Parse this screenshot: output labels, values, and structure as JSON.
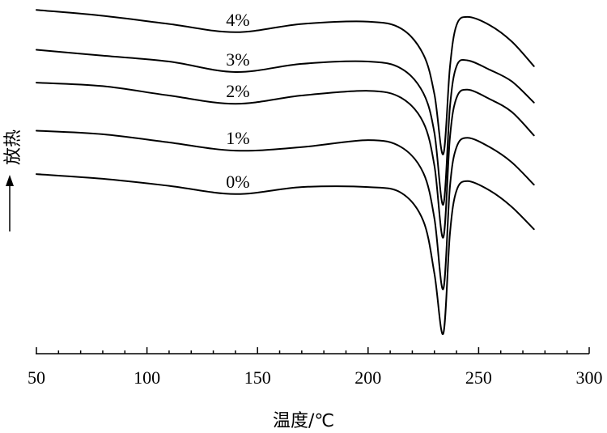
{
  "chart_data": {
    "type": "line",
    "title": "",
    "xlabel": "温度/℃",
    "ylabel": "放热",
    "xlim": [
      50,
      300
    ],
    "x_ticks": [
      50,
      100,
      150,
      200,
      250,
      300
    ],
    "x_tick_labels": [
      "50",
      "100",
      "150",
      "200",
      "250",
      "300"
    ],
    "x_minor_step": 10,
    "grid": false,
    "y_units": "relative heat flow (offset per series, exothermic up)",
    "series": [
      {
        "name": "4%",
        "x": [
          50,
          80,
          110,
          140,
          170,
          200,
          215,
          225,
          230,
          234,
          237,
          240,
          245,
          255,
          265,
          275
        ],
        "y": [
          375,
          370,
          363,
          356,
          363,
          365,
          359,
          337,
          303,
          252,
          326,
          362,
          369,
          362,
          348,
          327
        ]
      },
      {
        "name": "3%",
        "x": [
          50,
          80,
          110,
          140,
          170,
          200,
          215,
          225,
          230,
          234,
          237,
          240,
          245,
          255,
          265,
          275
        ],
        "y": [
          341,
          336,
          331,
          322,
          329,
          331,
          325,
          304,
          270,
          209,
          292,
          327,
          332,
          324,
          314,
          296
        ]
      },
      {
        "name": "2%",
        "x": [
          50,
          80,
          110,
          140,
          170,
          200,
          215,
          225,
          230,
          234,
          237,
          240,
          245,
          255,
          265,
          275
        ],
        "y": [
          313,
          310,
          302,
          295,
          302,
          306,
          300,
          279,
          242,
          181,
          266,
          300,
          307,
          299,
          288,
          268
        ]
      },
      {
        "name": "1%",
        "x": [
          50,
          80,
          110,
          140,
          170,
          200,
          215,
          225,
          230,
          234,
          237,
          240,
          245,
          255,
          265,
          275
        ],
        "y": [
          272,
          269,
          262,
          255,
          258,
          264,
          258,
          236,
          197,
          137,
          224,
          258,
          266,
          258,
          245,
          226
        ]
      },
      {
        "name": "0%",
        "x": [
          50,
          80,
          110,
          140,
          170,
          200,
          215,
          225,
          230,
          234,
          237,
          240,
          245,
          255,
          265,
          275
        ],
        "y": [
          235,
          231,
          225,
          218,
          224,
          224,
          219,
          195,
          150,
          99,
          184,
          221,
          229,
          221,
          207,
          188
        ]
      }
    ]
  }
}
